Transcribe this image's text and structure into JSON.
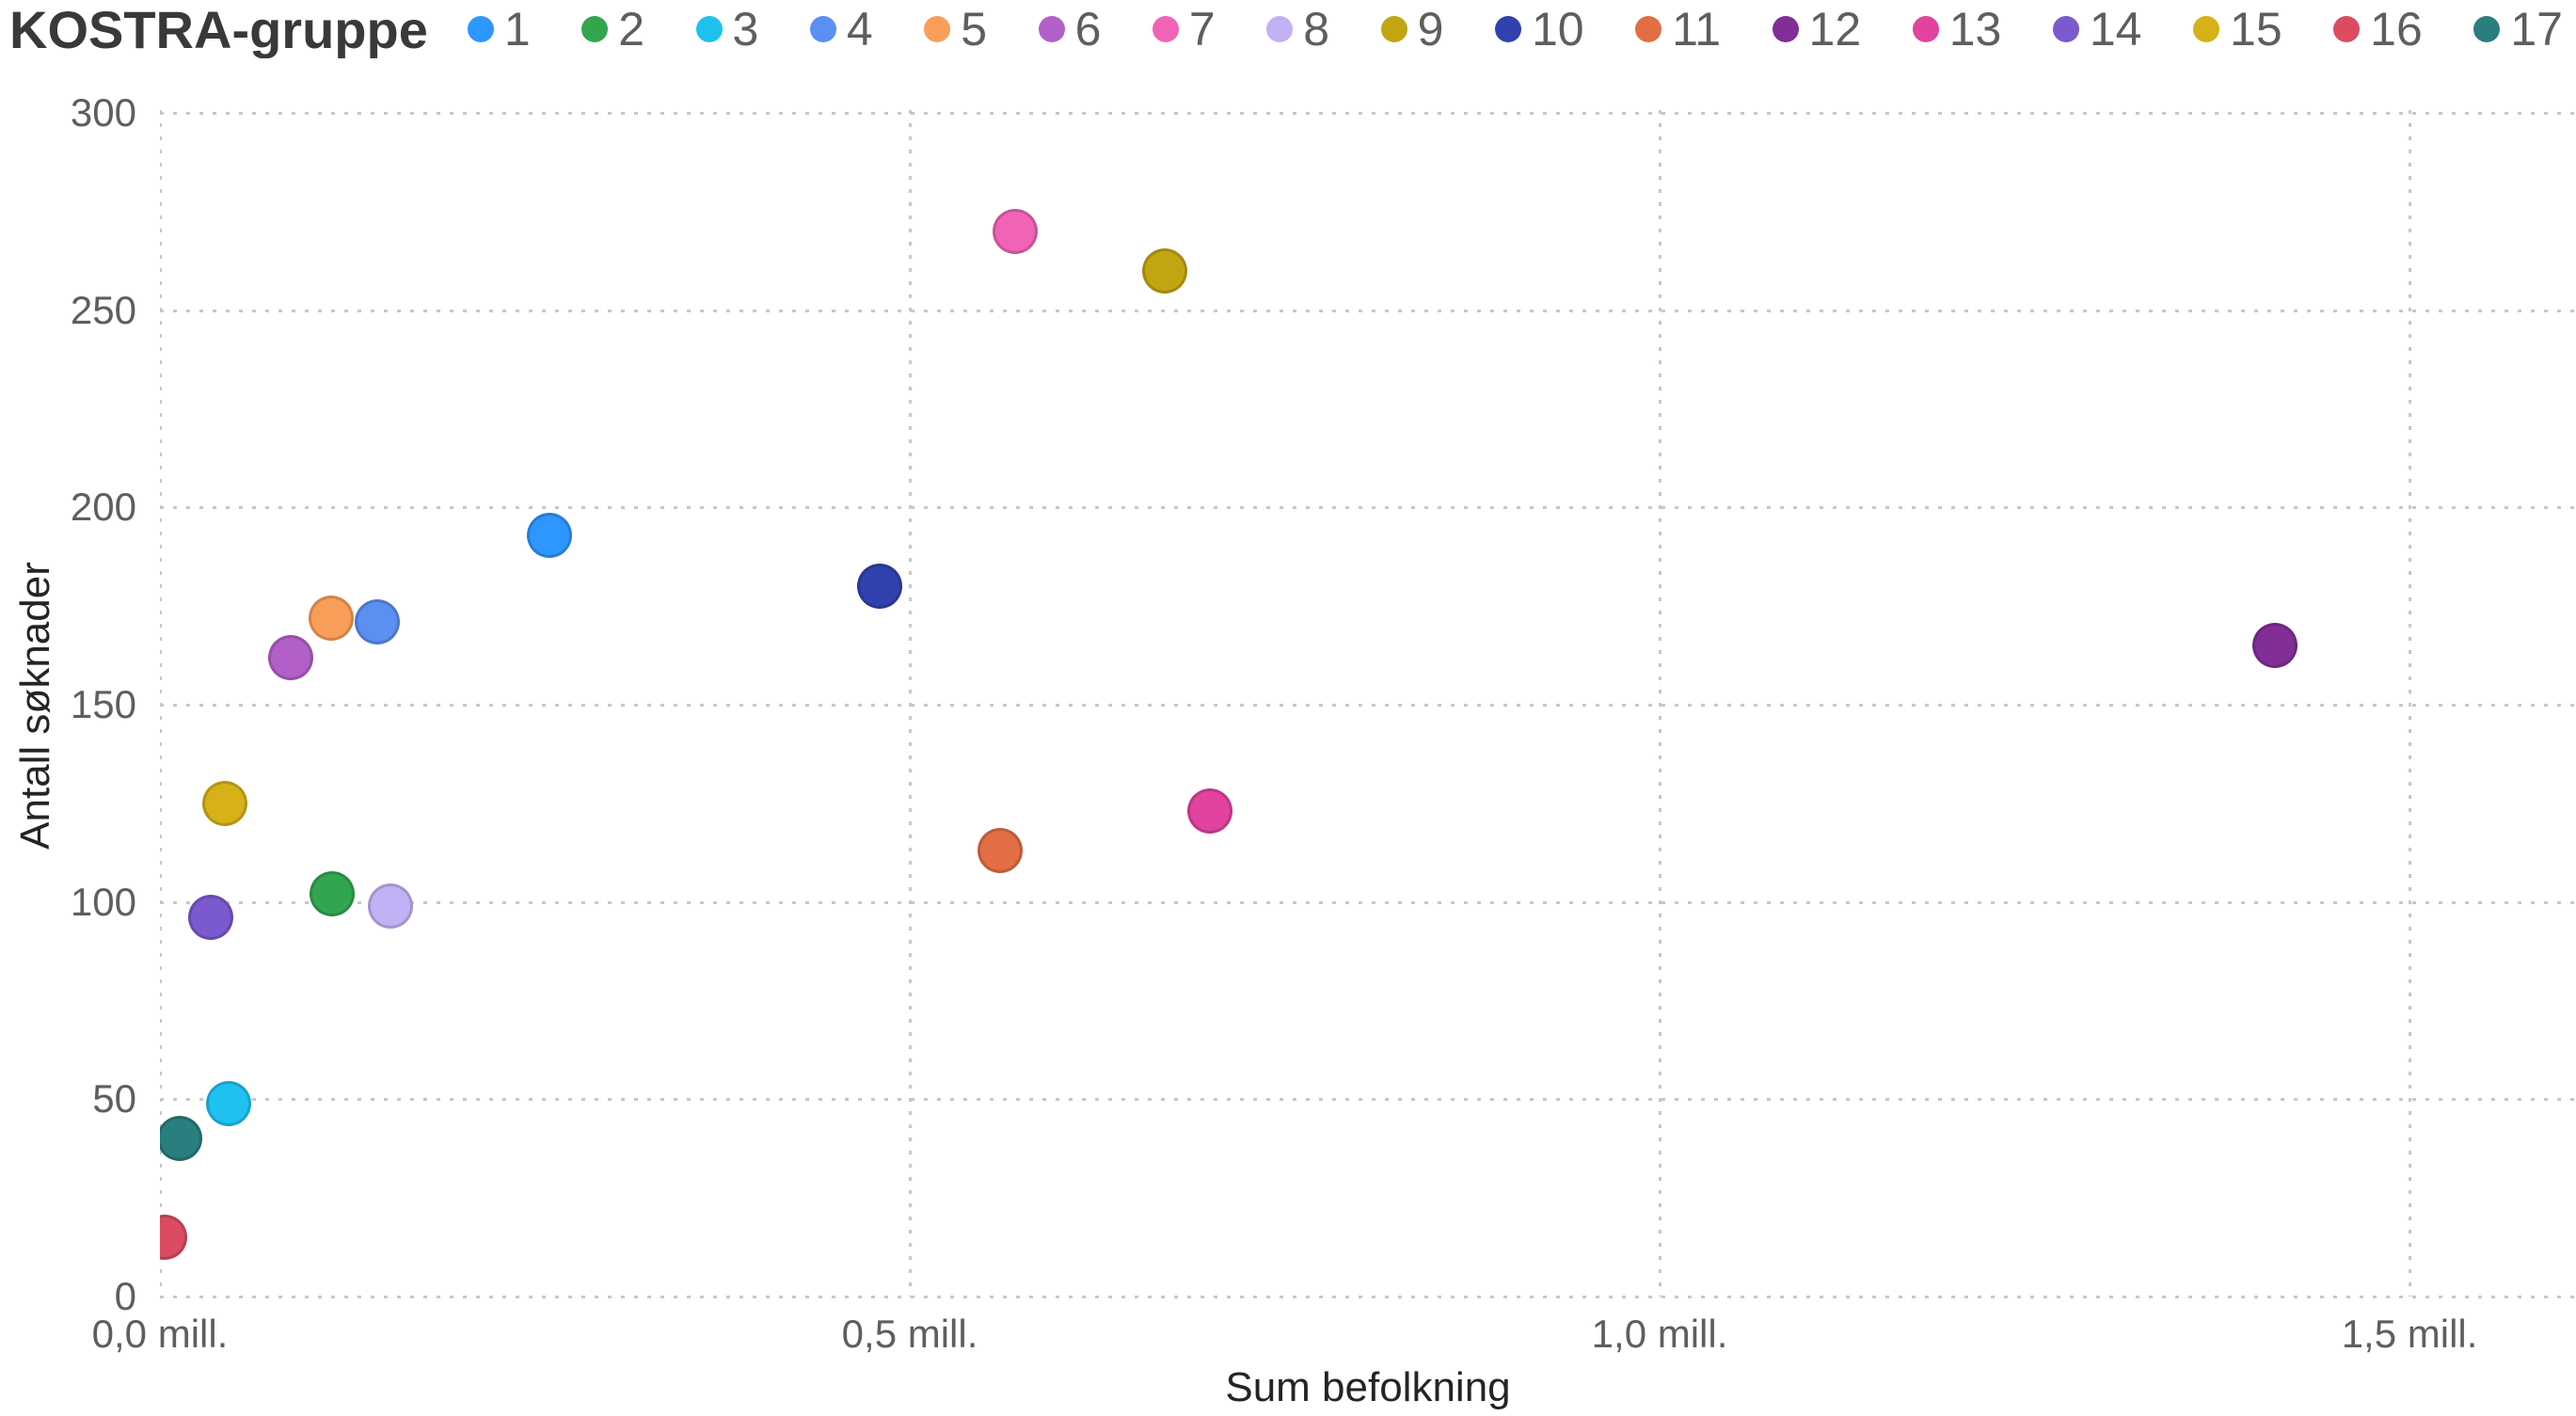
{
  "legend": {
    "title": "KOSTRA-gruppe",
    "position": "top"
  },
  "colors": {
    "background": "#FFFFFF",
    "tick_label": "#605E5C",
    "axis_title": "#252423",
    "legend_title": "#3A3938",
    "gridline": "#C8C7C6"
  },
  "chart_data": {
    "type": "scatter",
    "title": "",
    "xlabel": "Sum befolkning",
    "ylabel": "Antall søknader",
    "x_unit": "mill.",
    "x_tick_labels": [
      "0,0 mill.",
      "0,5 mill.",
      "1,0 mill.",
      "1,5 mill."
    ],
    "x_tick_values": [
      0,
      0.5,
      1.0,
      1.5
    ],
    "y_ticks": [
      0,
      50,
      100,
      150,
      200,
      250,
      300
    ],
    "xlim": [
      0,
      1.611
    ],
    "ylim": [
      0,
      300
    ],
    "grid": "dotted",
    "legend_position": "top",
    "series": [
      {
        "name": "1",
        "color": "#2E96FF",
        "x": 0.26,
        "y": 193
      },
      {
        "name": "2",
        "color": "#31A64F",
        "x": 0.115,
        "y": 102
      },
      {
        "name": "3",
        "color": "#1FC2EE",
        "x": 0.046,
        "y": 49
      },
      {
        "name": "4",
        "color": "#5B8FF2",
        "x": 0.145,
        "y": 171
      },
      {
        "name": "5",
        "color": "#F99E59",
        "x": 0.114,
        "y": 172
      },
      {
        "name": "6",
        "color": "#B35FC9",
        "x": 0.087,
        "y": 162
      },
      {
        "name": "7",
        "color": "#F064B6",
        "x": 0.57,
        "y": 270
      },
      {
        "name": "8",
        "color": "#C3B1F5",
        "x": 0.154,
        "y": 99
      },
      {
        "name": "9",
        "color": "#C2A513",
        "x": 0.67,
        "y": 260
      },
      {
        "name": "10",
        "color": "#3142AE",
        "x": 0.48,
        "y": 180
      },
      {
        "name": "11",
        "color": "#E26E44",
        "x": 0.56,
        "y": 113
      },
      {
        "name": "12",
        "color": "#822E97",
        "x": 1.41,
        "y": 165
      },
      {
        "name": "13",
        "color": "#E1439F",
        "x": 0.7,
        "y": 123
      },
      {
        "name": "14",
        "color": "#7B59CE",
        "x": 0.034,
        "y": 96
      },
      {
        "name": "15",
        "color": "#D6B117",
        "x": 0.043,
        "y": 125
      },
      {
        "name": "16",
        "color": "#DB4C60",
        "x": 0.003,
        "y": 15
      },
      {
        "name": "17",
        "color": "#297E7E",
        "x": 0.013,
        "y": 40
      }
    ]
  }
}
